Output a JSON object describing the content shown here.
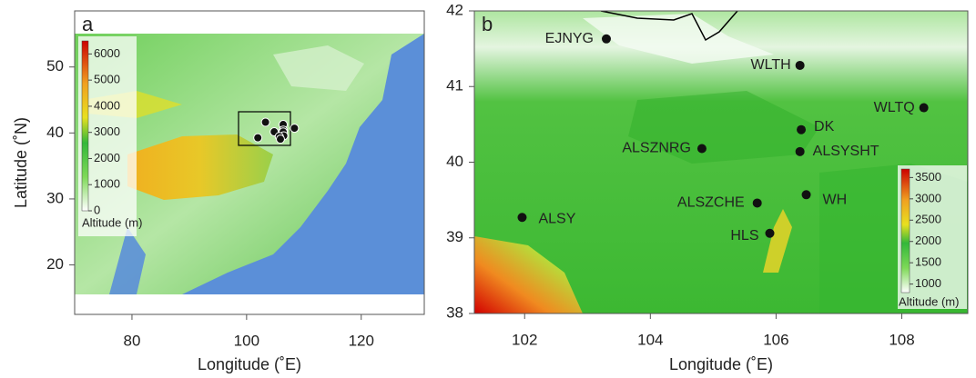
{
  "panels": [
    {
      "label": "a",
      "xlabel": "Longitude (˚E)",
      "ylabel": "Latitude (˚N)",
      "xlim": [
        70,
        131
      ],
      "ylim": [
        12.5,
        58.5
      ],
      "xticks": [
        80,
        100,
        120
      ],
      "yticks": [
        20,
        30,
        40,
        50
      ],
      "colorbar": {
        "label": "Altitude (m)",
        "clim": [
          0,
          6500
        ],
        "ticks": [
          0,
          1000,
          2000,
          3000,
          4000,
          5000,
          6000
        ]
      }
    },
    {
      "label": "b",
      "xlabel": "Longitude (˚E)",
      "xlim": [
        101.2,
        109.05
      ],
      "ylim": [
        38,
        42
      ],
      "xticks": [
        102,
        104,
        106,
        108
      ],
      "yticks": [
        38,
        39,
        40,
        41,
        42
      ],
      "colorbar": {
        "label": "Altitude (m)",
        "clim": [
          800,
          3700
        ],
        "ticks": [
          1000,
          1500,
          2000,
          2500,
          3000,
          3500
        ]
      }
    }
  ],
  "stations": [
    {
      "name": "EJNYG",
      "lon": 103.3,
      "lat": 41.63
    },
    {
      "name": "WLTH",
      "lon": 106.38,
      "lat": 41.28
    },
    {
      "name": "WLTQ",
      "lon": 108.35,
      "lat": 40.72
    },
    {
      "name": "DK",
      "lon": 106.4,
      "lat": 40.43
    },
    {
      "name": "ALSZNRG",
      "lon": 104.82,
      "lat": 40.18
    },
    {
      "name": "ALSYSHT",
      "lon": 106.38,
      "lat": 40.14
    },
    {
      "name": "WH",
      "lon": 106.48,
      "lat": 39.57
    },
    {
      "name": "ALSZCHE",
      "lon": 105.7,
      "lat": 39.46
    },
    {
      "name": "ALSY",
      "lon": 101.96,
      "lat": 39.27
    },
    {
      "name": "HLS",
      "lon": 105.9,
      "lat": 39.06
    }
  ]
}
